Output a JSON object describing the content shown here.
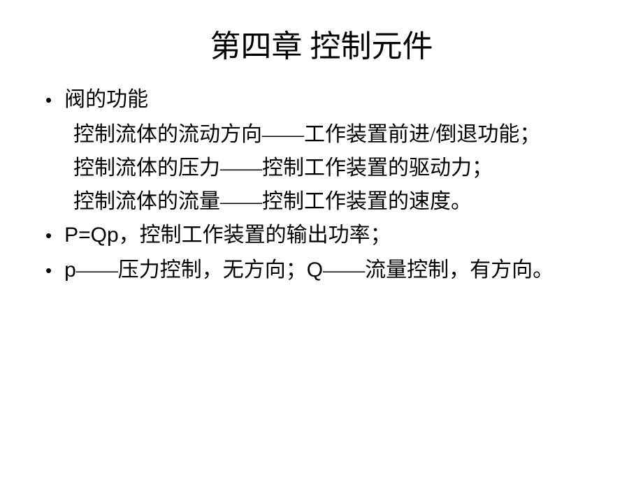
{
  "title": "第四章 控制元件",
  "items": [
    {
      "lead": "阀的功能",
      "sublines": [
        "控制流体的流动方向——工作装置前进/倒退功能；",
        "控制流体的压力——控制工作装置的驱动力；",
        "控制流体的流量——控制工作装置的速度。"
      ]
    },
    {
      "lead_html": "P=Qp，控制工作装置的输出功率；",
      "sublines": []
    },
    {
      "lead_html": "p——压力控制，无方向；Q——流量控制，有方向。",
      "sublines": []
    }
  ],
  "colors": {
    "background": "#ffffff",
    "text": "#000000"
  },
  "typography": {
    "title_fontsize": 44,
    "body_fontsize": 30,
    "line_height": 48,
    "font_family_cjk": "SimSun",
    "font_family_latin": "Arial"
  }
}
